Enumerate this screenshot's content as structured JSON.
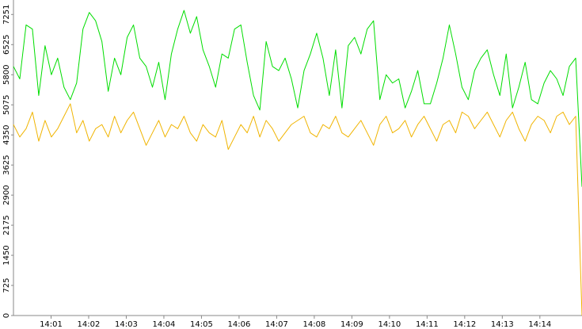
{
  "chart_data": {
    "type": "line",
    "xlim": [
      0,
      15.12
    ],
    "xticks": [
      {
        "value": 1,
        "label": "14:01"
      },
      {
        "value": 2,
        "label": "14:02"
      },
      {
        "value": 3,
        "label": "14:03"
      },
      {
        "value": 4,
        "label": "14:04"
      },
      {
        "value": 5,
        "label": "14:05"
      },
      {
        "value": 6,
        "label": "14:06"
      },
      {
        "value": 7,
        "label": "14:07"
      },
      {
        "value": 8,
        "label": "14:08"
      },
      {
        "value": 9,
        "label": "14:09"
      },
      {
        "value": 10,
        "label": "14:10"
      },
      {
        "value": 11,
        "label": "14:11"
      },
      {
        "value": 12,
        "label": "14:12"
      },
      {
        "value": 13,
        "label": "14:13"
      },
      {
        "value": 14,
        "label": "14:14"
      }
    ],
    "ylim": [
      0,
      7600
    ],
    "yticks": [
      0,
      725,
      1450,
      2175,
      2900,
      3625,
      4350,
      5075,
      5800,
      6525,
      7251
    ],
    "series": [
      {
        "color": "#00dd00",
        "values": [
          6000,
          5700,
          7000,
          6900,
          5300,
          6500,
          5800,
          6200,
          5500,
          5200,
          5600,
          6900,
          7300,
          7100,
          6600,
          5400,
          6200,
          5800,
          6700,
          7000,
          6200,
          6000,
          5500,
          6100,
          5200,
          6300,
          6900,
          7350,
          6800,
          7200,
          6400,
          6000,
          5500,
          6300,
          6200,
          6900,
          7000,
          6100,
          5300,
          4950,
          6600,
          6000,
          5900,
          6200,
          5700,
          5000,
          5900,
          6300,
          6800,
          6200,
          5300,
          6400,
          5000,
          6500,
          6700,
          6300,
          6900,
          7100,
          5200,
          5800,
          5600,
          5700,
          5000,
          5400,
          5900,
          5100,
          5100,
          5600,
          6200,
          7000,
          6300,
          5500,
          5200,
          5900,
          6200,
          6400,
          5800,
          5300,
          6300,
          5000,
          5500,
          6100,
          5200,
          5100,
          5600,
          5900,
          5700,
          5300,
          6000,
          6200,
          3100
        ]
      },
      {
        "color": "#f0b400",
        "values": [
          4600,
          4300,
          4500,
          4900,
          4200,
          4700,
          4300,
          4500,
          4800,
          5100,
          4400,
          4700,
          4200,
          4500,
          4600,
          4300,
          4800,
          4400,
          4700,
          4900,
          4500,
          4100,
          4400,
          4700,
          4300,
          4600,
          4500,
          4800,
          4400,
          4200,
          4600,
          4400,
          4300,
          4700,
          4000,
          4300,
          4600,
          4400,
          4800,
          4300,
          4700,
          4500,
          4200,
          4400,
          4600,
          4700,
          4800,
          4400,
          4300,
          4600,
          4500,
          4800,
          4400,
          4300,
          4500,
          4700,
          4400,
          4100,
          4600,
          4800,
          4400,
          4500,
          4700,
          4300,
          4600,
          4800,
          4500,
          4200,
          4600,
          4700,
          4400,
          4900,
          4800,
          4500,
          4700,
          4900,
          4600,
          4300,
          4700,
          4900,
          4500,
          4200,
          4600,
          4800,
          4700,
          4400,
          4800,
          4900,
          4600,
          4800,
          0
        ]
      }
    ]
  }
}
